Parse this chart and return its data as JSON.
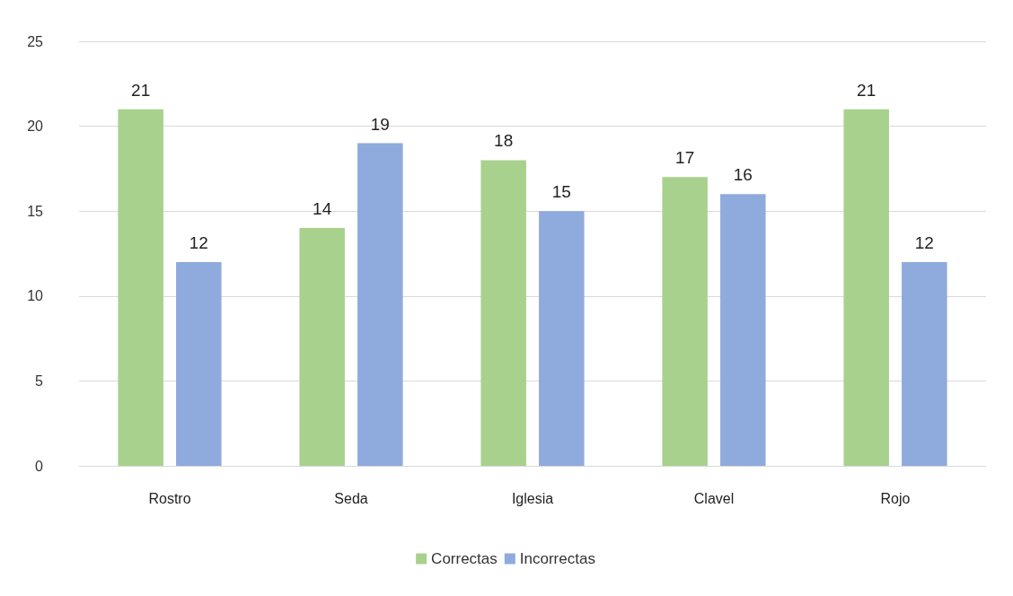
{
  "chart_data": {
    "type": "bar",
    "categories": [
      "Rostro",
      "Seda",
      "Iglesia",
      "Clavel",
      "Rojo"
    ],
    "series": [
      {
        "name": "Correctas",
        "color": "#a9d18e",
        "values": [
          21,
          14,
          18,
          17,
          21
        ]
      },
      {
        "name": "Incorrectas",
        "color": "#8faadc",
        "values": [
          12,
          19,
          15,
          16,
          12
        ]
      }
    ],
    "ylim": [
      0,
      25
    ],
    "yticks": [
      0,
      5,
      10,
      15,
      20,
      25
    ],
    "grid": "y",
    "legend": "bottom",
    "data_labels": true
  }
}
